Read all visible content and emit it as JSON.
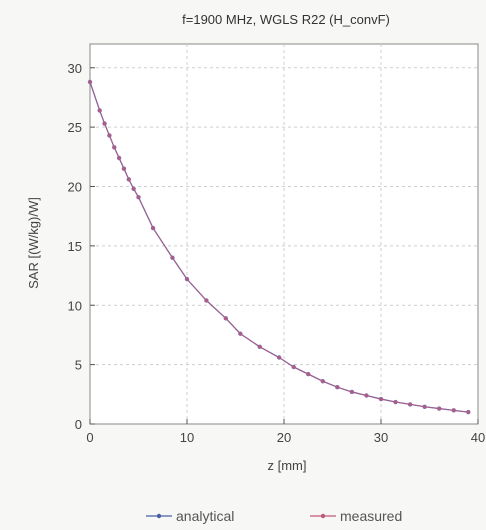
{
  "chart_data": {
    "type": "line",
    "title": "f=1900 MHz, WGLS R22 (H_convF)",
    "xlabel": "z [mm]",
    "ylabel": "SAR [(W/kg)/W]",
    "xlim": [
      0,
      40
    ],
    "ylim": [
      0,
      32
    ],
    "xticks": [
      0,
      10,
      20,
      30,
      40
    ],
    "yticks": [
      0,
      5,
      10,
      15,
      20,
      25,
      30
    ],
    "grid": true,
    "legend_position": "bottom",
    "series": [
      {
        "name": "analytical",
        "color": "#4a5fa8",
        "x": [
          0,
          1,
          1.5,
          2,
          2.5,
          3,
          3.5,
          4,
          4.5,
          5,
          6.5,
          8.5,
          10,
          12,
          14,
          15.5,
          17.5,
          19.5,
          21,
          22.5,
          24,
          25.5,
          27,
          28.5,
          30,
          31.5,
          33,
          34.5,
          36,
          37.5,
          39
        ],
        "y": [
          28.8,
          26.4,
          25.3,
          24.3,
          23.3,
          22.4,
          21.5,
          20.6,
          19.8,
          19.1,
          16.5,
          14.0,
          12.2,
          10.4,
          8.9,
          7.6,
          6.5,
          5.6,
          4.8,
          4.2,
          3.6,
          3.1,
          2.7,
          2.4,
          2.1,
          1.85,
          1.65,
          1.45,
          1.3,
          1.15,
          1.0
        ]
      },
      {
        "name": "measured",
        "color": "#c2577e",
        "x": [
          0,
          1,
          1.5,
          2,
          2.5,
          3,
          3.5,
          4,
          4.5,
          5,
          6.5,
          8.5,
          10,
          12,
          14,
          15.5,
          17.5,
          19.5,
          21,
          22.5,
          24,
          25.5,
          27,
          28.5,
          30,
          31.5,
          33,
          34.5,
          36,
          37.5,
          39
        ],
        "y": [
          28.8,
          26.4,
          25.3,
          24.3,
          23.3,
          22.4,
          21.5,
          20.6,
          19.8,
          19.1,
          16.5,
          14.0,
          12.2,
          10.4,
          8.9,
          7.6,
          6.5,
          5.6,
          4.8,
          4.2,
          3.6,
          3.1,
          2.7,
          2.4,
          2.1,
          1.85,
          1.65,
          1.45,
          1.3,
          1.15,
          1.0
        ]
      }
    ]
  }
}
